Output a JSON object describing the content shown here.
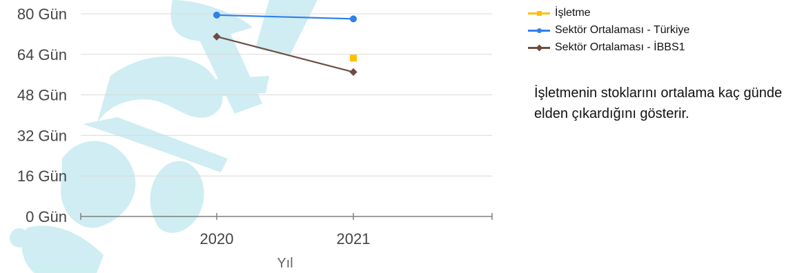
{
  "chart_data": {
    "type": "line",
    "title": "",
    "xlabel": "Yıl",
    "ylabel": "",
    "categories": [
      "2020",
      "2021"
    ],
    "ylim": [
      0,
      80
    ],
    "yticks": [
      0,
      16,
      32,
      48,
      64,
      80
    ],
    "ytick_labels": [
      "0 Gün",
      "16 Gün",
      "32 Gün",
      "48 Gün",
      "64 Gün",
      "80 Gün"
    ],
    "grid": "horizontal",
    "legend": "top-right",
    "series": [
      {
        "name": "İşletme",
        "color": "#FFC000",
        "marker": "square",
        "values": [
          null,
          62.5
        ]
      },
      {
        "name": "Sektör Ortalaması - Türkiye",
        "color": "#2F80ED",
        "marker": "circle",
        "values": [
          79.5,
          78
        ]
      },
      {
        "name": "Sektör Ortalaması - İBBS1",
        "color": "#6D4C41",
        "marker": "diamond",
        "values": [
          71,
          57
        ]
      }
    ]
  },
  "description": "İşletmenin stoklarını ortalama kaç günde elden çıkardığını gösterir."
}
